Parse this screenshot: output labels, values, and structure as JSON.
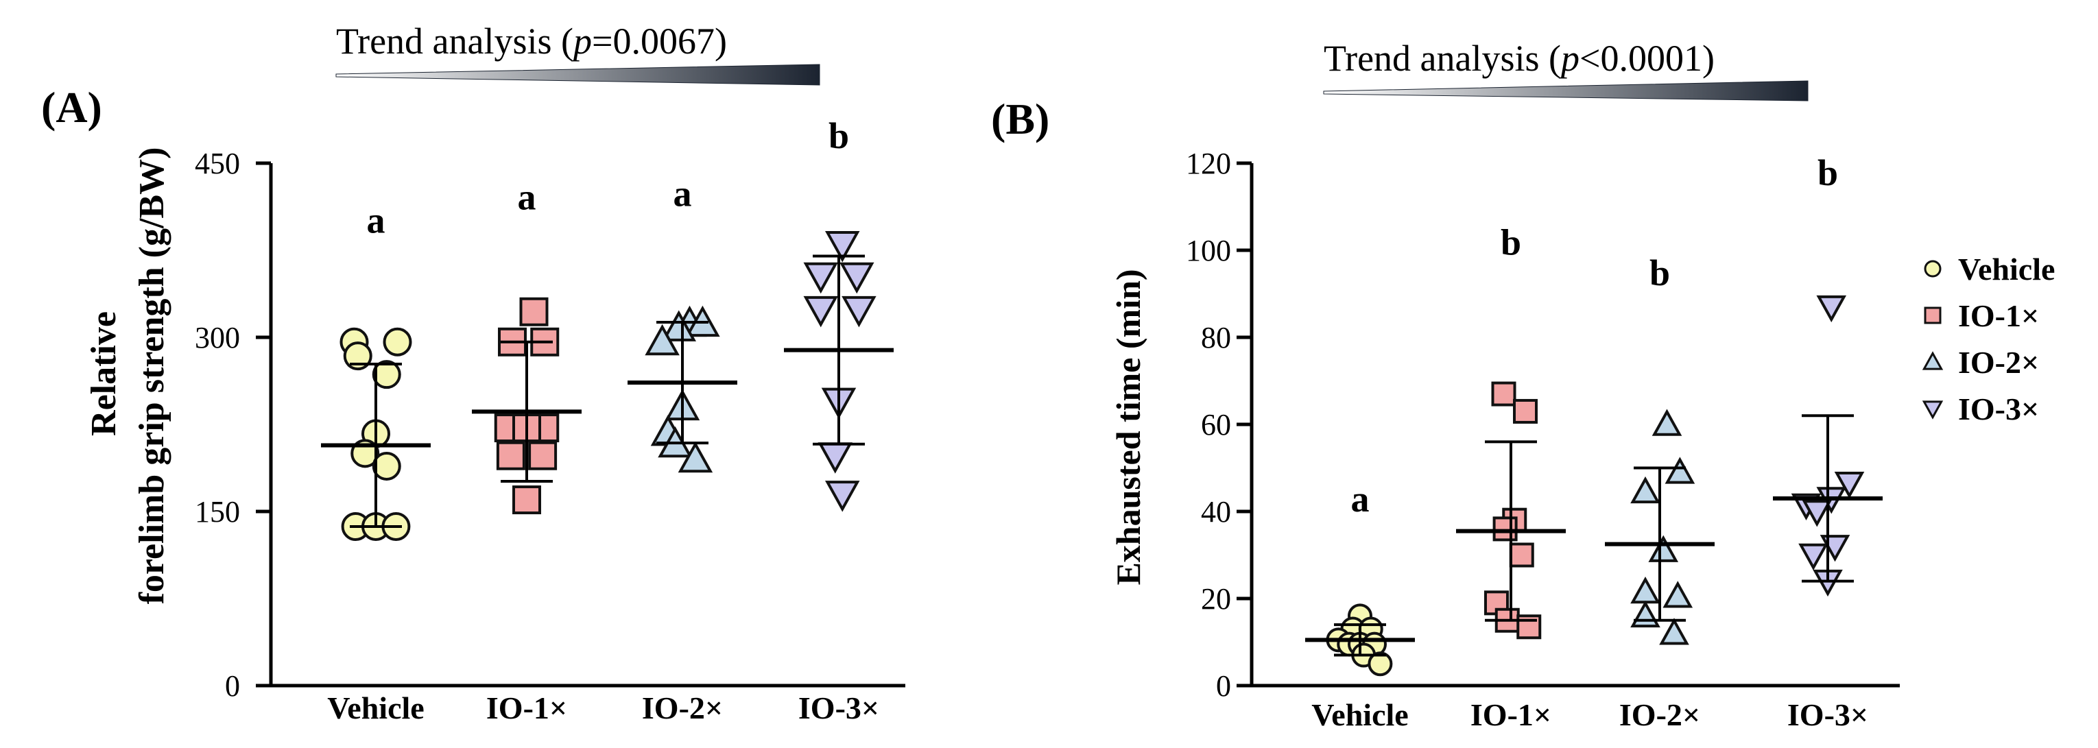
{
  "colors": {
    "vehicle": "#F6F7B4",
    "io1": "#F2A3A3",
    "io2": "#BFD7E8",
    "io3": "#C7C4EE",
    "stroke": "#111111",
    "gradient_dark": "#1B2330",
    "gradient_light": "#FFFFFF"
  },
  "chart_data": [
    {
      "panel": "A",
      "type": "scatter",
      "panel_label": "(A)",
      "trend": {
        "prefix": "Trend analysis (",
        "p": "p",
        "value": "=0.0067)"
      },
      "ylabel_line1": "Relative",
      "ylabel_line2": "forelimb grip strength (g/BW)",
      "ylim": [
        0,
        450
      ],
      "yticks": [
        0,
        150,
        300,
        450
      ],
      "categories": [
        "Vehicle",
        "IO-1×",
        "IO-2×",
        "IO-3×"
      ],
      "letters": [
        "a",
        "a",
        "a",
        "b"
      ],
      "letter_y": [
        390,
        410,
        413,
        463
      ],
      "series": [
        {
          "name": "Vehicle",
          "marker": "circle",
          "mean": 207,
          "sd": 70,
          "points": [
            [
              -0.3,
              296
            ],
            [
              0.3,
              296
            ],
            [
              -0.25,
              284
            ],
            [
              0.15,
              268
            ],
            [
              0,
              217
            ],
            [
              -0.15,
              200
            ],
            [
              0.15,
              189
            ],
            [
              -0.28,
              137
            ],
            [
              0,
              137
            ],
            [
              0.28,
              137
            ]
          ]
        },
        {
          "name": "IO-1×",
          "marker": "square",
          "mean": 236,
          "sd": 60,
          "points": [
            [
              0.1,
              322
            ],
            [
              -0.2,
              296
            ],
            [
              0.25,
              296
            ],
            [
              -0.25,
              222
            ],
            [
              0.25,
              222
            ],
            [
              0,
              222
            ],
            [
              -0.22,
              198
            ],
            [
              0.22,
              198
            ],
            [
              0,
              160
            ]
          ]
        },
        {
          "name": "IO-2×",
          "marker": "triangle-up",
          "mean": 261,
          "sd": 52,
          "points": [
            [
              0.1,
              312
            ],
            [
              0.28,
              312
            ],
            [
              -0.05,
              308
            ],
            [
              -0.28,
              296
            ],
            [
              0,
              240
            ],
            [
              -0.2,
              218
            ],
            [
              -0.1,
              208
            ],
            [
              0.18,
              195
            ]
          ]
        },
        {
          "name": "IO-3×",
          "marker": "triangle-down",
          "mean": 289,
          "sd": 81,
          "points": [
            [
              0.05,
              380
            ],
            [
              -0.25,
              353
            ],
            [
              0.25,
              353
            ],
            [
              0.28,
              324
            ],
            [
              -0.25,
              324
            ],
            [
              0,
              245
            ],
            [
              -0.05,
              198
            ],
            [
              0.05,
              165
            ]
          ]
        }
      ]
    },
    {
      "panel": "B",
      "type": "scatter",
      "panel_label": "(B)",
      "trend": {
        "prefix": "Trend analysis (",
        "p": "p",
        "value": "<0.0001)"
      },
      "ylabel_line1": "Exhausted time (min)",
      "ylabel_line2": "",
      "ylim": [
        0,
        120
      ],
      "yticks": [
        0,
        20,
        40,
        60,
        80,
        100,
        120
      ],
      "categories": [
        "Vehicle",
        "IO-1×",
        "IO-2×",
        "IO-3×"
      ],
      "letters": [
        "a",
        "b",
        "b",
        "b"
      ],
      "letter_y": [
        40,
        99,
        92,
        115
      ],
      "series": [
        {
          "name": "Vehicle",
          "marker": "circle",
          "mean": 10.5,
          "sd": 3.5,
          "points": [
            [
              0,
              16
            ],
            [
              -0.1,
              13
            ],
            [
              0.15,
              13
            ],
            [
              -0.3,
              10.5
            ],
            [
              -0.15,
              9.5
            ],
            [
              0,
              9.5
            ],
            [
              0.2,
              9.5
            ],
            [
              0.05,
              7
            ],
            [
              0.28,
              5
            ]
          ]
        },
        {
          "name": "IO-1×",
          "marker": "square",
          "mean": 35.5,
          "sd": 20.5,
          "points": [
            [
              -0.1,
              67
            ],
            [
              0.2,
              63
            ],
            [
              0.05,
              38
            ],
            [
              -0.08,
              36
            ],
            [
              0.15,
              30
            ],
            [
              -0.2,
              19
            ],
            [
              -0.05,
              15
            ],
            [
              0.25,
              13.5
            ]
          ]
        },
        {
          "name": "IO-2×",
          "marker": "triangle-up",
          "mean": 32.5,
          "sd": 17.5,
          "points": [
            [
              0.1,
              60
            ],
            [
              0.28,
              49
            ],
            [
              -0.2,
              44.5
            ],
            [
              0.05,
              31
            ],
            [
              -0.2,
              21.5
            ],
            [
              0.25,
              20.5
            ],
            [
              -0.2,
              16
            ],
            [
              0.2,
              12
            ]
          ]
        },
        {
          "name": "IO-3×",
          "marker": "triangle-down",
          "mean": 43,
          "sd": 19,
          "points": [
            [
              0.05,
              87
            ],
            [
              0.3,
              46.5
            ],
            [
              0.05,
              43
            ],
            [
              -0.3,
              41.5
            ],
            [
              -0.15,
              40
            ],
            [
              -0.2,
              30
            ],
            [
              0.1,
              32
            ],
            [
              0,
              24
            ]
          ]
        }
      ]
    }
  ],
  "legend": {
    "items": [
      {
        "label": "Vehicle",
        "marker": "circle"
      },
      {
        "label": "IO-1×",
        "marker": "square"
      },
      {
        "label": "IO-2×",
        "marker": "triangle-up"
      },
      {
        "label": "IO-3×",
        "marker": "triangle-down"
      }
    ]
  }
}
